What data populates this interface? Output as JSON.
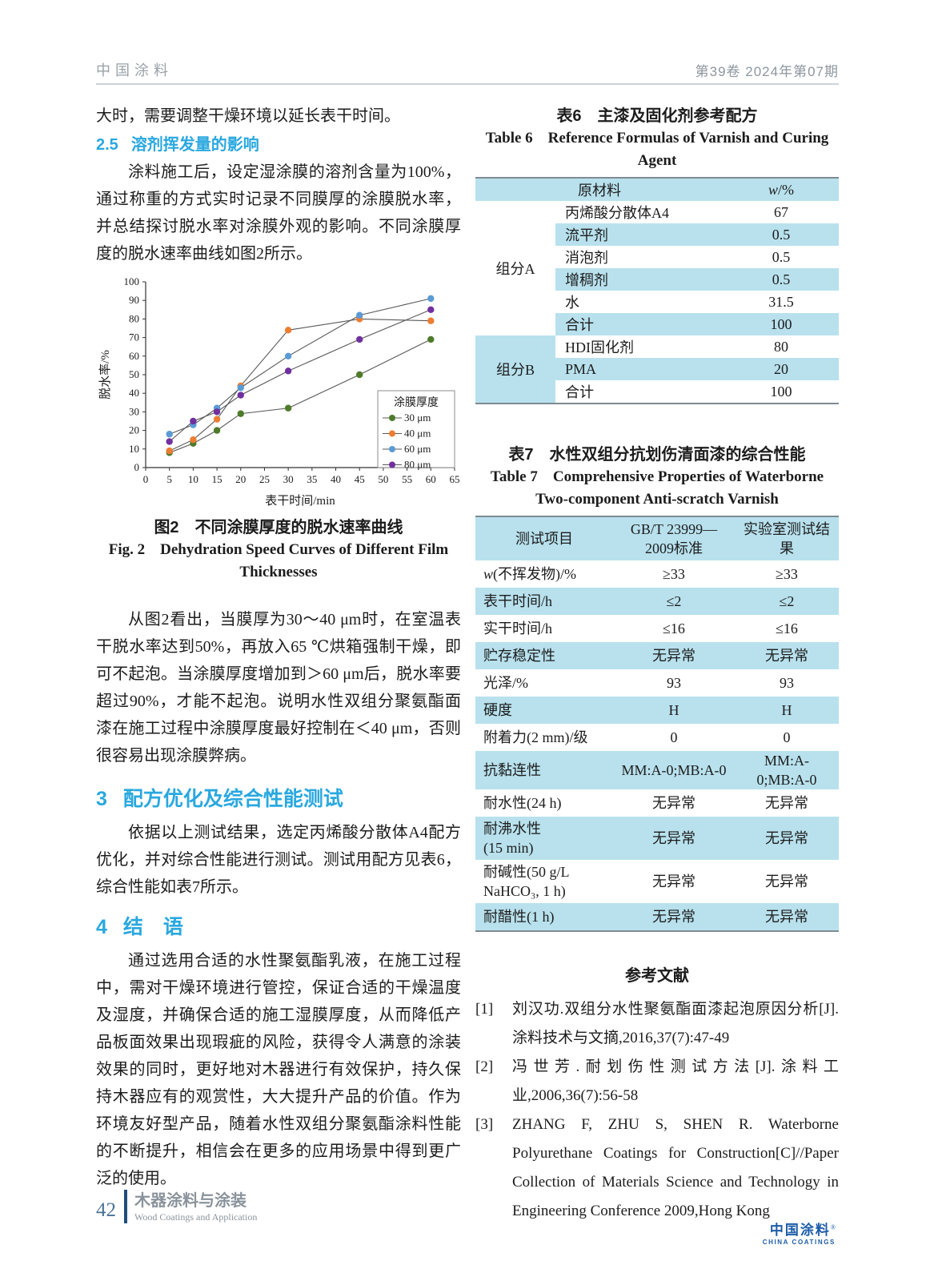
{
  "header": {
    "journal": "中国涂料",
    "issue": "第39卷  2024年第07期"
  },
  "left_column": {
    "intro": "大时，需要调整干燥环境以延长表干时间。",
    "section_2_5": {
      "number": "2.5",
      "title": "溶剂挥发量的影响"
    },
    "para_solvent": "涂料施工后，设定湿涂膜的溶剂含量为100%，通过称重的方式实时记录不同膜厚的涂膜脱水率，并总结探讨脱水率对涂膜外观的影响。不同涂膜厚度的脱水速率曲线如图2所示。",
    "figure_caption": {
      "cn": "图2　不同涂膜厚度的脱水速率曲线",
      "en_line1": "Fig. 2　Dehydration Speed Curves of Different Film",
      "en_line2": "Thicknesses"
    },
    "para_analysis": "从图2看出，当膜厚为30～40 μm时，在室温表干脱水率达到50%，再放入65 ℃烘箱强制干燥，即可不起泡。当涂膜厚度增加到＞60 μm后，脱水率要超过90%，才能不起泡。说明水性双组分聚氨酯面漆在施工过程中涂膜厚度最好控制在＜40 μm，否则很容易出现涂膜弊病。",
    "section_3": {
      "number": "3",
      "title": "配方优化及综合性能测试"
    },
    "para_formula": "依据以上测试结果，选定丙烯酸分散体A4配方优化，并对综合性能进行测试。测试用配方见表6，综合性能如表7所示。",
    "section_4": {
      "number": "4",
      "title": "结　语"
    },
    "para_conclusion": "通过选用合适的水性聚氨酯乳液，在施工过程中，需对干燥环境进行管控，保证合适的干燥温度及湿度，并确保合适的施工湿膜厚度，从而降低产品板面效果出现瑕疵的风险，获得令人满意的涂装效果的同时，更好地对木器进行有效保护，持久保持木器应有的观赏性，大大提升产品的价值。作为环境友好型产品，随着水性双组分聚氨酯涂料性能的不断提升，相信会在更多的应用场景中得到更广泛的使用。"
  },
  "chart_data": {
    "type": "line",
    "xlabel": "表干时间/min",
    "ylabel": "脱水率/%",
    "xlim": [
      0,
      65
    ],
    "ylim": [
      0,
      100
    ],
    "xticks": [
      0,
      5,
      10,
      15,
      20,
      25,
      30,
      35,
      40,
      45,
      50,
      55,
      60,
      65
    ],
    "yticks": [
      0,
      10,
      20,
      30,
      40,
      50,
      60,
      70,
      80,
      90,
      100
    ],
    "x": [
      5,
      10,
      15,
      20,
      30,
      45,
      60
    ],
    "legend_title": "涂膜厚度",
    "legend_position": "lower right",
    "grid": false,
    "connector_color": "#595959",
    "series": [
      {
        "name": "30 μm",
        "color": "#4e7b2a",
        "values": [
          8,
          13,
          20,
          29,
          32,
          50,
          69
        ]
      },
      {
        "name": "40 μm",
        "color": "#ed7d31",
        "values": [
          9,
          15,
          26,
          44,
          74,
          80,
          79
        ]
      },
      {
        "name": "60 μm",
        "color": "#5b9bd5",
        "values": [
          18,
          23,
          32,
          43,
          60,
          82,
          91
        ]
      },
      {
        "name": "80 μm",
        "color": "#7030a0",
        "values": [
          14,
          25,
          30,
          39,
          52,
          69,
          85
        ]
      }
    ]
  },
  "table6": {
    "title_cn": "表6　主漆及固化剂参考配方",
    "title_en": "Table 6　Reference Formulas of Varnish and Curing Agent",
    "header": {
      "material": "原材料",
      "weight": "w/%"
    },
    "groups": [
      {
        "name": "组分A",
        "rows": [
          {
            "material": "丙烯酸分散体A4",
            "value": "67"
          },
          {
            "material": "流平剂",
            "value": "0.5"
          },
          {
            "material": "消泡剂",
            "value": "0.5"
          },
          {
            "material": "增稠剂",
            "value": "0.5"
          },
          {
            "material": "水",
            "value": "31.5"
          },
          {
            "material": "合计",
            "value": "100"
          }
        ]
      },
      {
        "name": "组分B",
        "rows": [
          {
            "material": "HDI固化剂",
            "value": "80"
          },
          {
            "material": "PMA",
            "value": "20"
          },
          {
            "material": "合计",
            "value": "100"
          }
        ]
      }
    ]
  },
  "table7": {
    "title_cn": "表7　水性双组分抗划伤清面漆的综合性能",
    "title_en_line1": "Table 7　Comprehensive Properties of Waterborne",
    "title_en_line2": "Two-component Anti-scratch Varnish",
    "headers": [
      "测试项目",
      "GB/T 23999—\n2009标准",
      "实验室测试结果"
    ],
    "rows": [
      {
        "item": "w(不挥发物)/%",
        "standard": "≥33",
        "result": "≥33"
      },
      {
        "item": "表干时间/h",
        "standard": "≤2",
        "result": "≤2"
      },
      {
        "item": "实干时间/h",
        "standard": "≤16",
        "result": "≤16"
      },
      {
        "item": "贮存稳定性",
        "standard": "无异常",
        "result": "无异常"
      },
      {
        "item": "光泽/%",
        "standard": "93",
        "result": "93"
      },
      {
        "item": "硬度",
        "standard": "H",
        "result": "H"
      },
      {
        "item": "附着力(2 mm)/级",
        "standard": "0",
        "result": "0"
      },
      {
        "item": "抗黏连性",
        "standard": "MM:A-0;MB:A-0",
        "result": "MM:A-0;MB:A-0"
      },
      {
        "item": "耐水性(24 h)",
        "standard": "无异常",
        "result": "无异常"
      },
      {
        "item": "耐沸水性\n(15 min)",
        "standard": "无异常",
        "result": "无异常"
      },
      {
        "item": "耐碱性(50 g/L\nNaHCO₃, 1 h)",
        "standard": "无异常",
        "result": "无异常"
      },
      {
        "item": "耐醋性(1 h)",
        "standard": "无异常",
        "result": "无异常"
      }
    ]
  },
  "references": {
    "heading": "参考文献",
    "items": [
      {
        "number": "[1]",
        "lang": "cn",
        "text": "刘汉功.双组分水性聚氨酯面漆起泡原因分析[J].涂料技术与文摘,2016,37(7):47-49"
      },
      {
        "number": "[2]",
        "lang": "cn",
        "text": "冯世芳.耐划伤性测试方法[J].涂料工业,2006,36(7):56-58"
      },
      {
        "number": "[3]",
        "lang": "en",
        "text": "ZHANG F, ZHU S, SHEN R. Waterborne Polyurethane Coatings for Construction[C]//Paper Collection of Materials Science and Technology in Engineering Conference 2009,Hong Kong"
      }
    ]
  },
  "logo": {
    "name_cn": "中国涂料",
    "mark": "®",
    "name_en": "CHINA COATINGS"
  },
  "footer": {
    "page_number": "42",
    "column_cn": "木器涂料与涂装",
    "column_en": "Wood Coatings and Application"
  },
  "colors": {
    "accent_cyan": "#29a8df",
    "table_band_blue": "#b8e1ed",
    "logo_blue": "#1d5ca8"
  }
}
